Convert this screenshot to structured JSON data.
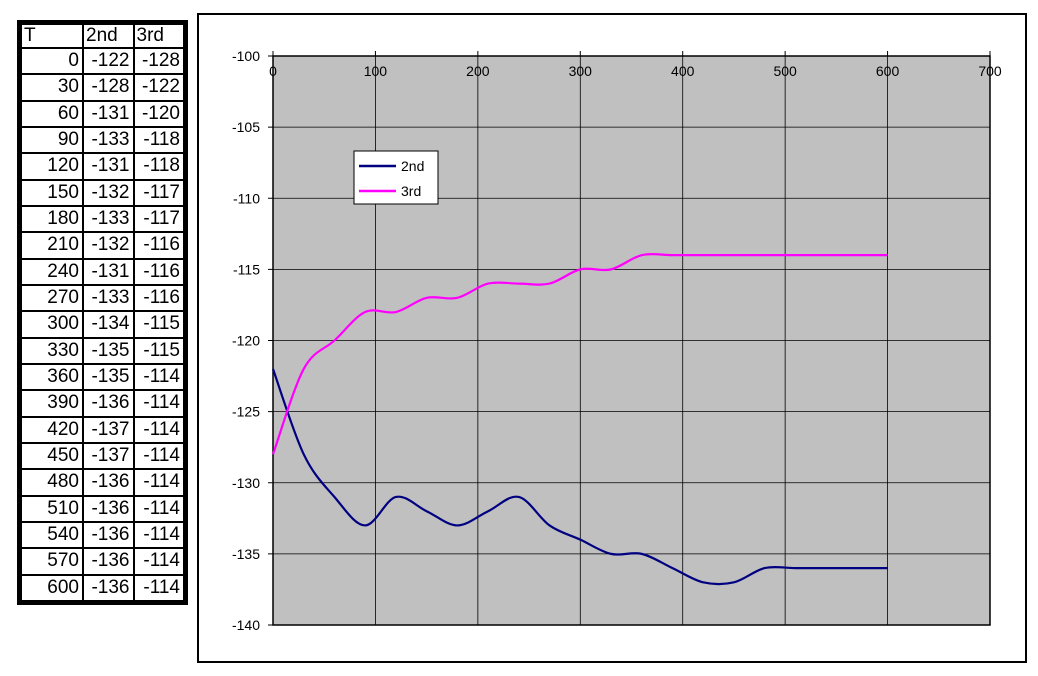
{
  "table": {
    "headers": [
      "T",
      "2nd",
      "3rd"
    ],
    "rows": [
      [
        "0",
        "-122",
        "-128"
      ],
      [
        "30",
        "-128",
        "-122"
      ],
      [
        "60",
        "-131",
        "-120"
      ],
      [
        "90",
        "-133",
        "-118"
      ],
      [
        "120",
        "-131",
        "-118"
      ],
      [
        "150",
        "-132",
        "-117"
      ],
      [
        "180",
        "-133",
        "-117"
      ],
      [
        "210",
        "-132",
        "-116"
      ],
      [
        "240",
        "-131",
        "-116"
      ],
      [
        "270",
        "-133",
        "-116"
      ],
      [
        "300",
        "-134",
        "-115"
      ],
      [
        "330",
        "-135",
        "-115"
      ],
      [
        "360",
        "-135",
        "-114"
      ],
      [
        "390",
        "-136",
        "-114"
      ],
      [
        "420",
        "-137",
        "-114"
      ],
      [
        "450",
        "-137",
        "-114"
      ],
      [
        "480",
        "-136",
        "-114"
      ],
      [
        "510",
        "-136",
        "-114"
      ],
      [
        "540",
        "-136",
        "-114"
      ],
      [
        "570",
        "-136",
        "-114"
      ],
      [
        "600",
        "-136",
        "-114"
      ]
    ]
  },
  "chart_data": {
    "type": "line",
    "x": [
      0,
      30,
      60,
      90,
      120,
      150,
      180,
      210,
      240,
      270,
      300,
      330,
      360,
      390,
      420,
      450,
      480,
      510,
      540,
      570,
      600
    ],
    "series": [
      {
        "name": "2nd",
        "color": "#000080",
        "values": [
          -122,
          -128,
          -131,
          -133,
          -131,
          -132,
          -133,
          -132,
          -131,
          -133,
          -134,
          -135,
          -135,
          -136,
          -137,
          -137,
          -136,
          -136,
          -136,
          -136,
          -136
        ]
      },
      {
        "name": "3rd",
        "color": "#ff00ff",
        "values": [
          -128,
          -122,
          -120,
          -118,
          -118,
          -117,
          -117,
          -116,
          -116,
          -116,
          -115,
          -115,
          -114,
          -114,
          -114,
          -114,
          -114,
          -114,
          -114,
          -114,
          -114
        ]
      }
    ],
    "xlim": [
      0,
      700
    ],
    "ylim": [
      -140,
      -100
    ],
    "x_ticks": [
      "0",
      "100",
      "200",
      "300",
      "400",
      "500",
      "600",
      "700"
    ],
    "y_ticks": [
      "-100",
      "-105",
      "-110",
      "-115",
      "-120",
      "-125",
      "-130",
      "-135",
      "-140"
    ],
    "x_axis_position": "top",
    "plot_background": "#c0c0c0",
    "grid": true,
    "legend": {
      "placement": "upper-left",
      "entries": [
        "2nd",
        "3rd"
      ]
    },
    "title": "",
    "xlabel": "",
    "ylabel": ""
  }
}
